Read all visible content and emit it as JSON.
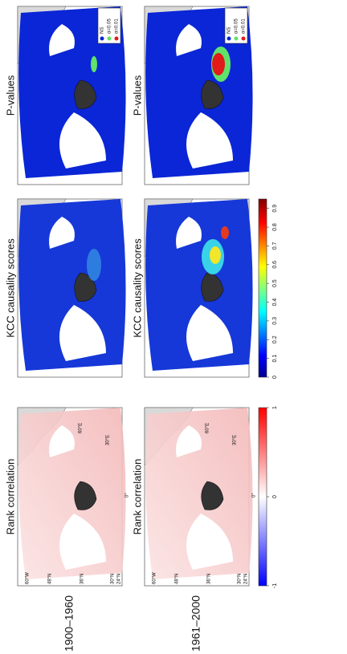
{
  "row_labels": [
    "1900–1960",
    "1961–2000"
  ],
  "panel_titles": [
    "Rank correlation",
    "KCC causality scores",
    "P-values"
  ],
  "graticule_labels": [
    "60°W",
    "48°N",
    "36°N",
    "30°N",
    "24°N",
    "0°",
    "30°E",
    "60°E"
  ],
  "legend": [
    "NS",
    "α=0.05",
    "α=0.01"
  ],
  "colorbars": [
    {
      "ticks": [
        -1,
        0,
        1
      ]
    },
    {
      "ticks": [
        0,
        0.1,
        0.2,
        0.3,
        0.4,
        0.5,
        0.6,
        0.7,
        0.8,
        0.9
      ]
    }
  ]
}
